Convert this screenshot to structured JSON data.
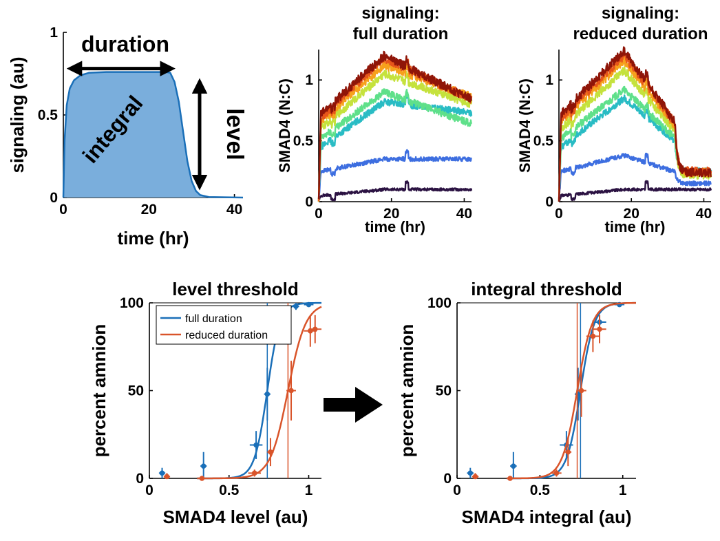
{
  "colors": {
    "blue": "#1a6fb8",
    "orange": "#d9542a",
    "fill_blue": "#7aaedc",
    "black": "#000000"
  },
  "chart_data": [
    {
      "id": "schematic",
      "type": "area",
      "xlabel": "time (hr)",
      "ylabel": "signaling (au)",
      "xlim": [
        0,
        42
      ],
      "ylim": [
        0,
        1
      ],
      "xticks": [
        "0",
        "20",
        "40"
      ],
      "yticks": [
        "0",
        "0.5",
        "1"
      ],
      "x": [
        0,
        0.3,
        0.8,
        1.5,
        2.5,
        4,
        6,
        10,
        15,
        20,
        24,
        25,
        26,
        27,
        28,
        29,
        30,
        31,
        32,
        34,
        42
      ],
      "y": [
        0,
        0.35,
        0.56,
        0.66,
        0.71,
        0.74,
        0.755,
        0.76,
        0.76,
        0.76,
        0.76,
        0.755,
        0.7,
        0.58,
        0.4,
        0.22,
        0.1,
        0.04,
        0.015,
        0.003,
        0
      ],
      "annotations": {
        "duration": "duration",
        "integral": "integral",
        "level": "level"
      }
    },
    {
      "id": "full",
      "type": "line",
      "title": "signaling:\nfull duration",
      "xlabel": "time (hr)",
      "ylabel": "SMAD4 (N:C)",
      "xlim": [
        0,
        42
      ],
      "ylim": [
        0,
        1.25
      ],
      "xticks": [
        "0",
        "20",
        "40"
      ],
      "yticks": [
        "0",
        "0.5",
        "1"
      ],
      "cutoff": null,
      "series": [
        {
          "name": "d1",
          "color": "#2b1242",
          "start": 0.05,
          "peak": 0.1,
          "end": 0.1
        },
        {
          "name": "d2",
          "color": "#3d6ee0",
          "start": 0.25,
          "peak": 0.35,
          "end": 0.35
        },
        {
          "name": "d3",
          "color": "#29bcc4",
          "start": 0.45,
          "peak": 0.82,
          "end": 0.73
        },
        {
          "name": "d4",
          "color": "#5fe08a",
          "start": 0.52,
          "peak": 0.9,
          "end": 0.64
        },
        {
          "name": "d5",
          "color": "#c5e23d",
          "start": 0.6,
          "peak": 1.05,
          "end": 0.8
        },
        {
          "name": "d6",
          "color": "#f6a11c",
          "start": 0.66,
          "peak": 1.12,
          "end": 0.86
        },
        {
          "name": "d7",
          "color": "#e7561a",
          "start": 0.69,
          "peak": 1.18,
          "end": 0.84
        },
        {
          "name": "d8",
          "color": "#8f1508",
          "start": 0.72,
          "peak": 1.2,
          "end": 0.84
        }
      ]
    },
    {
      "id": "reduced",
      "type": "line",
      "title": "signaling:\nreduced duration",
      "xlabel": "time (hr)",
      "ylabel": "SMAD4 (N:C)",
      "xlim": [
        0,
        42
      ],
      "ylim": [
        0,
        1.25
      ],
      "xticks": [
        "0",
        "20",
        "40"
      ],
      "yticks": [
        "0",
        "0.5",
        "1"
      ],
      "cutoff": 32,
      "series": [
        {
          "name": "d1",
          "color": "#2b1242",
          "start": 0.05,
          "peak": 0.1,
          "end": 0.1
        },
        {
          "name": "d2",
          "color": "#3d6ee0",
          "start": 0.25,
          "peak": 0.38,
          "end": 0.15
        },
        {
          "name": "d3",
          "color": "#29bcc4",
          "start": 0.45,
          "peak": 0.85,
          "end": 0.25
        },
        {
          "name": "d4",
          "color": "#5fe08a",
          "start": 0.52,
          "peak": 0.92,
          "end": 0.24
        },
        {
          "name": "d5",
          "color": "#c5e23d",
          "start": 0.6,
          "peak": 1.08,
          "end": 0.22
        },
        {
          "name": "d6",
          "color": "#f6a11c",
          "start": 0.66,
          "peak": 1.16,
          "end": 0.24
        },
        {
          "name": "d7",
          "color": "#e7561a",
          "start": 0.69,
          "peak": 1.2,
          "end": 0.25
        },
        {
          "name": "d8",
          "color": "#8f1508",
          "start": 0.72,
          "peak": 1.24,
          "end": 0.24
        }
      ]
    },
    {
      "id": "level_threshold",
      "type": "scatter",
      "title": "level threshold",
      "xlabel": "SMAD4 level (au)",
      "ylabel": "percent amnion",
      "xlim": [
        0,
        1.08
      ],
      "ylim": [
        0,
        100
      ],
      "xticks": [
        "0",
        "0.5",
        "1"
      ],
      "yticks": [
        "0",
        "50",
        "100"
      ],
      "legend": [
        "full duration",
        "reduced duration"
      ],
      "legend_position": "top-left",
      "series": [
        {
          "name": "full duration",
          "color": "#1a6fb8",
          "threshold": 0.74,
          "slope": 25,
          "points": [
            {
              "x": 0.08,
              "y": 3,
              "xerr": 0.02,
              "yerr": 3
            },
            {
              "x": 0.34,
              "y": 7,
              "xerr": 0.02,
              "yerr": 8
            },
            {
              "x": 0.67,
              "y": 19,
              "xerr": 0.04,
              "yerr": 8
            },
            {
              "x": 0.74,
              "y": 48,
              "xerr": 0.02,
              "yerr": 15
            },
            {
              "x": 0.92,
              "y": 98,
              "xerr": 0.02,
              "yerr": 2
            },
            {
              "x": 1.0,
              "y": 99,
              "xerr": 0.03,
              "yerr": 1
            }
          ]
        },
        {
          "name": "reduced duration",
          "color": "#d9542a",
          "threshold": 0.87,
          "slope": 18,
          "points": [
            {
              "x": 0.11,
              "y": 1,
              "xerr": 0.02,
              "yerr": 2
            },
            {
              "x": 0.33,
              "y": 0,
              "xerr": 0.02,
              "yerr": 1
            },
            {
              "x": 0.66,
              "y": 3,
              "xerr": 0.04,
              "yerr": 2
            },
            {
              "x": 0.76,
              "y": 15,
              "xerr": 0.02,
              "yerr": 8
            },
            {
              "x": 0.89,
              "y": 50,
              "xerr": 0.03,
              "yerr": 17
            },
            {
              "x": 1.01,
              "y": 84,
              "xerr": 0.04,
              "yerr": 9
            },
            {
              "x": 1.04,
              "y": 85,
              "xerr": 0.04,
              "yerr": 8
            }
          ]
        }
      ]
    },
    {
      "id": "integral_threshold",
      "type": "scatter",
      "title": "integral threshold",
      "xlabel": "SMAD4 integral (au)",
      "ylabel": "percent amnion",
      "xlim": [
        0,
        1.08
      ],
      "ylim": [
        0,
        100
      ],
      "xticks": [
        "0",
        "0.5",
        "1"
      ],
      "yticks": [
        "0",
        "50",
        "100"
      ],
      "series": [
        {
          "name": "full duration",
          "color": "#1a6fb8",
          "threshold": 0.745,
          "slope": 24,
          "points": [
            {
              "x": 0.08,
              "y": 3,
              "xerr": 0.02,
              "yerr": 3
            },
            {
              "x": 0.34,
              "y": 7,
              "xerr": 0.02,
              "yerr": 8
            },
            {
              "x": 0.66,
              "y": 19,
              "xerr": 0.04,
              "yerr": 8
            },
            {
              "x": 0.73,
              "y": 48,
              "xerr": 0.02,
              "yerr": 15
            },
            {
              "x": 0.86,
              "y": 89,
              "xerr": 0.04,
              "yerr": 4
            },
            {
              "x": 0.98,
              "y": 99,
              "xerr": 0.03,
              "yerr": 1
            }
          ]
        },
        {
          "name": "reduced duration",
          "color": "#d9542a",
          "threshold": 0.725,
          "slope": 22,
          "points": [
            {
              "x": 0.11,
              "y": 1,
              "xerr": 0.02,
              "yerr": 2
            },
            {
              "x": 0.32,
              "y": 0,
              "xerr": 0.02,
              "yerr": 1
            },
            {
              "x": 0.6,
              "y": 3,
              "xerr": 0.03,
              "yerr": 2
            },
            {
              "x": 0.67,
              "y": 15,
              "xerr": 0.02,
              "yerr": 8
            },
            {
              "x": 0.75,
              "y": 50,
              "xerr": 0.03,
              "yerr": 15
            },
            {
              "x": 0.82,
              "y": 81,
              "xerr": 0.04,
              "yerr": 9
            },
            {
              "x": 0.86,
              "y": 85,
              "xerr": 0.04,
              "yerr": 8
            }
          ]
        }
      ]
    }
  ]
}
